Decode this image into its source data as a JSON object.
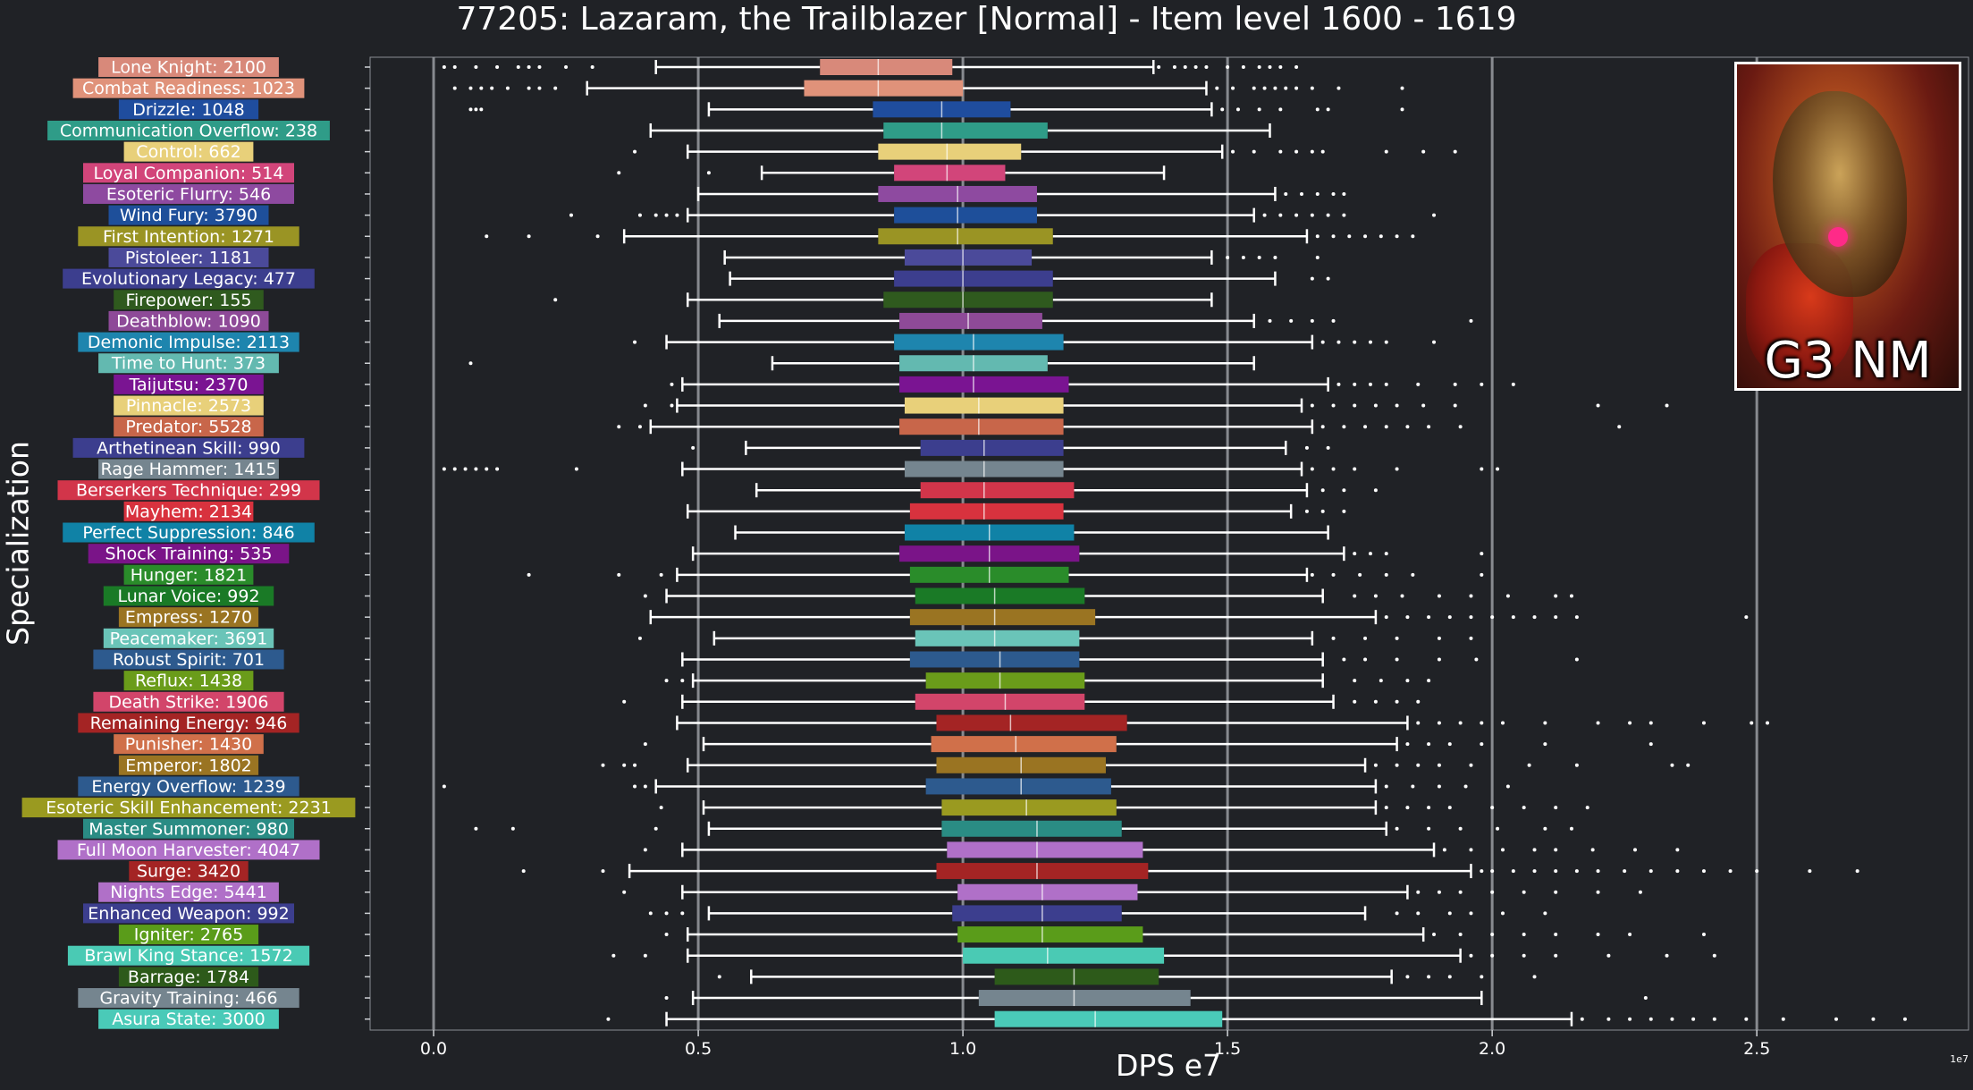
{
  "title": "77205: Lazaram, the Trailblazer [Normal] - Item level 1600 - 1619",
  "thumbnail": {
    "label": "G3 NM",
    "icon": "boss-portrait"
  },
  "chart_data": {
    "type": "box",
    "title": "77205: Lazaram, the Trailblazer [Normal] - Item level 1600 - 1619",
    "xlabel": "DPS e7",
    "ylabel": "Specialization",
    "xlim": [
      -0.12,
      2.9
    ],
    "xticks": [
      0.0,
      0.5,
      1.0,
      1.5,
      2.0,
      2.5
    ],
    "xtick_labels": [
      "0.0",
      "0.5",
      "1.0",
      "1.5",
      "2.0",
      "2.5"
    ],
    "offset_label": "1e7",
    "grid_x": [
      0,
      0.5,
      1.0,
      1.5,
      2.0,
      2.5
    ],
    "series": [
      {
        "label": "Lone Knight: 2100",
        "color": "#d8897a",
        "wl": 0.42,
        "q1": 0.73,
        "med": 0.84,
        "q3": 0.98,
        "wh": 1.36,
        "out": [
          0.02,
          0.04,
          0.08,
          0.12,
          0.16,
          0.18,
          0.2,
          0.25,
          0.3,
          1.37,
          1.4,
          1.42,
          1.44,
          1.46,
          1.5,
          1.53,
          1.56,
          1.58,
          1.6,
          1.63
        ]
      },
      {
        "label": "Combat Readiness: 1023",
        "color": "#e0927a",
        "wl": 0.29,
        "q1": 0.7,
        "med": 0.84,
        "q3": 1.0,
        "wh": 1.46,
        "out": [
          0.04,
          0.07,
          0.09,
          0.11,
          0.14,
          0.18,
          0.2,
          0.23,
          1.48,
          1.51,
          1.55,
          1.57,
          1.59,
          1.61,
          1.63,
          1.66,
          1.71,
          1.83
        ]
      },
      {
        "label": "Drizzle: 1048",
        "color": "#1f4d9e",
        "wl": 0.52,
        "q1": 0.83,
        "med": 0.96,
        "q3": 1.09,
        "wh": 1.47,
        "out": [
          0.07,
          0.08,
          0.09,
          1.49,
          1.52,
          1.56,
          1.6,
          1.67,
          1.69,
          1.83
        ]
      },
      {
        "label": "Communication Overflow: 238",
        "color": "#2f9c88",
        "wl": 0.41,
        "q1": 0.85,
        "med": 0.96,
        "q3": 1.16,
        "wh": 1.58,
        "out": []
      },
      {
        "label": "Control: 662",
        "color": "#e8d07a",
        "wl": 0.48,
        "q1": 0.84,
        "med": 0.97,
        "q3": 1.11,
        "wh": 1.49,
        "out": [
          0.38,
          1.51,
          1.55,
          1.6,
          1.63,
          1.66,
          1.68,
          1.8,
          1.87,
          1.93
        ]
      },
      {
        "label": "Loyal Companion: 514",
        "color": "#d2457a",
        "wl": 0.62,
        "q1": 0.87,
        "med": 0.97,
        "q3": 1.08,
        "wh": 1.38,
        "out": [
          0.35,
          0.52
        ]
      },
      {
        "label": "Esoteric Flurry: 546",
        "color": "#8e4aa0",
        "wl": 0.5,
        "q1": 0.84,
        "med": 0.99,
        "q3": 1.14,
        "wh": 1.59,
        "out": [
          1.61,
          1.64,
          1.67,
          1.7,
          1.72
        ]
      },
      {
        "label": "Wind Fury: 3790",
        "color": "#1e4f9a",
        "wl": 0.48,
        "q1": 0.87,
        "med": 0.99,
        "q3": 1.14,
        "wh": 1.55,
        "out": [
          0.26,
          0.39,
          0.42,
          0.44,
          0.46,
          1.57,
          1.6,
          1.63,
          1.66,
          1.69,
          1.72,
          1.89
        ]
      },
      {
        "label": "First Intention: 1271",
        "color": "#9a9424",
        "wl": 0.36,
        "q1": 0.84,
        "med": 0.99,
        "q3": 1.17,
        "wh": 1.65,
        "out": [
          0.1,
          0.18,
          0.31,
          1.67,
          1.7,
          1.73,
          1.76,
          1.79,
          1.82,
          1.85
        ]
      },
      {
        "label": "Pistoleer: 1181",
        "color": "#4b4a9a",
        "wl": 0.55,
        "q1": 0.89,
        "med": 1.0,
        "q3": 1.13,
        "wh": 1.47,
        "out": [
          1.5,
          1.53,
          1.56,
          1.59,
          1.67
        ]
      },
      {
        "label": "Evolutionary Legacy: 477",
        "color": "#3c3e8e",
        "wl": 0.56,
        "q1": 0.87,
        "med": 1.0,
        "q3": 1.17,
        "wh": 1.59,
        "out": [
          1.66,
          1.69
        ]
      },
      {
        "label": "Firepower: 155",
        "color": "#2f5a1e",
        "wl": 0.48,
        "q1": 0.85,
        "med": 1.0,
        "q3": 1.17,
        "wh": 1.47,
        "out": [
          0.23
        ]
      },
      {
        "label": "Deathblow: 1090",
        "color": "#8e4a98",
        "wl": 0.54,
        "q1": 0.88,
        "med": 1.01,
        "q3": 1.15,
        "wh": 1.55,
        "out": [
          1.58,
          1.62,
          1.66,
          1.7,
          1.96
        ]
      },
      {
        "label": "Demonic Impulse: 2113",
        "color": "#1e85ae",
        "wl": 0.44,
        "q1": 0.87,
        "med": 1.02,
        "q3": 1.19,
        "wh": 1.66,
        "out": [
          0.38,
          1.68,
          1.71,
          1.74,
          1.77,
          1.8,
          1.89
        ]
      },
      {
        "label": "Time to Hunt: 373",
        "color": "#63b9b0",
        "wl": 0.64,
        "q1": 0.88,
        "med": 1.02,
        "q3": 1.16,
        "wh": 1.55,
        "out": [
          0.07
        ]
      },
      {
        "label": "Taijutsu: 2370",
        "color": "#7a1492",
        "wl": 0.47,
        "q1": 0.88,
        "med": 1.02,
        "q3": 1.2,
        "wh": 1.69,
        "out": [
          0.45,
          1.71,
          1.74,
          1.77,
          1.8,
          1.86,
          1.93,
          1.98,
          2.04
        ]
      },
      {
        "label": "Pinnacle: 2573",
        "color": "#e8d07a",
        "wl": 0.46,
        "q1": 0.89,
        "med": 1.03,
        "q3": 1.19,
        "wh": 1.64,
        "out": [
          0.4,
          0.45,
          1.66,
          1.7,
          1.74,
          1.78,
          1.82,
          1.87,
          1.93,
          2.2,
          2.33
        ]
      },
      {
        "label": "Predator: 5528",
        "color": "#c8664a",
        "wl": 0.41,
        "q1": 0.88,
        "med": 1.03,
        "q3": 1.19,
        "wh": 1.66,
        "out": [
          0.35,
          0.39,
          1.68,
          1.72,
          1.76,
          1.8,
          1.84,
          1.88,
          1.94,
          2.24
        ]
      },
      {
        "label": "Arthetinean Skill: 990",
        "color": "#3c3e8e",
        "wl": 0.59,
        "q1": 0.92,
        "med": 1.04,
        "q3": 1.19,
        "wh": 1.61,
        "out": [
          0.49,
          1.65,
          1.69
        ]
      },
      {
        "label": "Rage Hammer: 1415",
        "color": "#75858f",
        "wl": 0.47,
        "q1": 0.89,
        "med": 1.04,
        "q3": 1.19,
        "wh": 1.64,
        "out": [
          0.02,
          0.04,
          0.06,
          0.08,
          0.1,
          0.12,
          0.27,
          1.66,
          1.7,
          1.74,
          1.82,
          1.98,
          2.01
        ]
      },
      {
        "label": "Berserkers Technique: 299",
        "color": "#d2354a",
        "wl": 0.61,
        "q1": 0.92,
        "med": 1.04,
        "q3": 1.21,
        "wh": 1.65,
        "out": [
          1.68,
          1.72,
          1.78
        ]
      },
      {
        "label": "Mayhem: 2134",
        "color": "#d8323e",
        "wl": 0.48,
        "q1": 0.9,
        "med": 1.04,
        "q3": 1.19,
        "wh": 1.62,
        "out": [
          1.65,
          1.68,
          1.72
        ]
      },
      {
        "label": "Perfect Suppression: 846",
        "color": "#1082a6",
        "wl": 0.57,
        "q1": 0.89,
        "med": 1.05,
        "q3": 1.21,
        "wh": 1.69,
        "out": []
      },
      {
        "label": "Shock Training: 535",
        "color": "#7a1488",
        "wl": 0.49,
        "q1": 0.88,
        "med": 1.05,
        "q3": 1.22,
        "wh": 1.72,
        "out": [
          1.74,
          1.77,
          1.8,
          1.98
        ]
      },
      {
        "label": "Hunger: 1821",
        "color": "#2a8c2a",
        "wl": 0.46,
        "q1": 0.9,
        "med": 1.05,
        "q3": 1.2,
        "wh": 1.65,
        "out": [
          0.18,
          0.35,
          0.43,
          1.66,
          1.7,
          1.75,
          1.8,
          1.85,
          1.98
        ]
      },
      {
        "label": "Lunar Voice: 992",
        "color": "#1a7a26",
        "wl": 0.44,
        "q1": 0.91,
        "med": 1.06,
        "q3": 1.23,
        "wh": 1.68,
        "out": [
          0.4,
          1.74,
          1.78,
          1.83,
          1.9,
          1.96,
          2.03,
          2.12,
          2.15
        ]
      },
      {
        "label": "Empress: 1270",
        "color": "#9a7422",
        "wl": 0.41,
        "q1": 0.9,
        "med": 1.06,
        "q3": 1.25,
        "wh": 1.78,
        "out": [
          1.8,
          1.84,
          1.88,
          1.92,
          1.96,
          2.0,
          2.04,
          2.08,
          2.12,
          2.16,
          2.48
        ]
      },
      {
        "label": "Peacemaker: 3691",
        "color": "#6ac4b8",
        "wl": 0.53,
        "q1": 0.91,
        "med": 1.06,
        "q3": 1.22,
        "wh": 1.66,
        "out": [
          0.39,
          1.7,
          1.76,
          1.82,
          1.9,
          1.96
        ]
      },
      {
        "label": "Robust Spirit: 701",
        "color": "#2d5a8e",
        "wl": 0.47,
        "q1": 0.9,
        "med": 1.07,
        "q3": 1.22,
        "wh": 1.68,
        "out": [
          1.72,
          1.76,
          1.82,
          1.9,
          1.97,
          2.16
        ]
      },
      {
        "label": "Reflux: 1438",
        "color": "#6a9c1a",
        "wl": 0.49,
        "q1": 0.93,
        "med": 1.07,
        "q3": 1.23,
        "wh": 1.68,
        "out": [
          0.44,
          0.47,
          1.74,
          1.79,
          1.84,
          1.88
        ]
      },
      {
        "label": "Death Strike: 1906",
        "color": "#d2456a",
        "wl": 0.47,
        "q1": 0.91,
        "med": 1.08,
        "q3": 1.23,
        "wh": 1.7,
        "out": [
          0.36,
          1.74,
          1.78,
          1.82,
          1.86
        ]
      },
      {
        "label": "Remaining Energy: 946",
        "color": "#a42424",
        "wl": 0.46,
        "q1": 0.95,
        "med": 1.09,
        "q3": 1.31,
        "wh": 1.84,
        "out": [
          1.86,
          1.9,
          1.94,
          1.98,
          2.02,
          2.1,
          2.2,
          2.26,
          2.3,
          2.4,
          2.49,
          2.52
        ]
      },
      {
        "label": "Punisher: 1430",
        "color": "#d0704a",
        "wl": 0.51,
        "q1": 0.94,
        "med": 1.1,
        "q3": 1.29,
        "wh": 1.82,
        "out": [
          0.4,
          1.84,
          1.88,
          1.92,
          1.98,
          2.1,
          2.3
        ]
      },
      {
        "label": "Emperor: 1802",
        "color": "#9a7422",
        "wl": 0.48,
        "q1": 0.95,
        "med": 1.11,
        "q3": 1.27,
        "wh": 1.76,
        "out": [
          0.32,
          0.36,
          0.38,
          1.78,
          1.82,
          1.86,
          1.9,
          1.96,
          2.07,
          2.16,
          2.34,
          2.37
        ]
      },
      {
        "label": "Energy Overflow: 1239",
        "color": "#2d5a8e",
        "wl": 0.42,
        "q1": 0.93,
        "med": 1.11,
        "q3": 1.28,
        "wh": 1.78,
        "out": [
          0.02,
          0.38,
          0.4,
          1.8,
          1.85,
          1.9,
          1.95,
          2.03
        ]
      },
      {
        "label": "Esoteric Skill Enhancement: 2231",
        "color": "#9a9a20",
        "wl": 0.51,
        "q1": 0.96,
        "med": 1.12,
        "q3": 1.29,
        "wh": 1.78,
        "out": [
          0.43,
          1.8,
          1.84,
          1.88,
          1.92,
          2.0,
          2.06,
          2.12,
          2.18
        ]
      },
      {
        "label": "Master Summoner: 980",
        "color": "#2a8c84",
        "wl": 0.52,
        "q1": 0.96,
        "med": 1.14,
        "q3": 1.3,
        "wh": 1.8,
        "out": [
          0.08,
          0.15,
          0.42,
          1.82,
          1.88,
          1.94,
          2.01,
          2.1,
          2.15
        ]
      },
      {
        "label": "Full Moon Harvester: 4047",
        "color": "#b070c8",
        "wl": 0.47,
        "q1": 0.97,
        "med": 1.14,
        "q3": 1.34,
        "wh": 1.89,
        "out": [
          0.4,
          1.91,
          1.96,
          2.02,
          2.08,
          2.12,
          2.19,
          2.27,
          2.35
        ]
      },
      {
        "label": "Surge: 3420",
        "color": "#a42424",
        "wl": 0.37,
        "q1": 0.95,
        "med": 1.14,
        "q3": 1.35,
        "wh": 1.96,
        "out": [
          0.17,
          0.32,
          1.98,
          2.0,
          2.04,
          2.08,
          2.12,
          2.16,
          2.2,
          2.25,
          2.3,
          2.35,
          2.4,
          2.45,
          2.5,
          2.6,
          2.69
        ]
      },
      {
        "label": "Nights Edge: 5441",
        "color": "#b070c8",
        "wl": 0.47,
        "q1": 0.99,
        "med": 1.15,
        "q3": 1.33,
        "wh": 1.84,
        "out": [
          0.36,
          1.86,
          1.9,
          1.94,
          2.0,
          2.06,
          2.12,
          2.2,
          2.28
        ]
      },
      {
        "label": "Enhanced Weapon: 992",
        "color": "#3c3e8e",
        "wl": 0.52,
        "q1": 0.98,
        "med": 1.15,
        "q3": 1.3,
        "wh": 1.76,
        "out": [
          0.41,
          0.44,
          0.47,
          1.82,
          1.86,
          1.92,
          1.96,
          2.02,
          2.1
        ]
      },
      {
        "label": "Igniter: 2765",
        "color": "#5a9c1a",
        "wl": 0.48,
        "q1": 0.99,
        "med": 1.15,
        "q3": 1.34,
        "wh": 1.87,
        "out": [
          0.44,
          1.89,
          1.94,
          2.0,
          2.06,
          2.12,
          2.2,
          2.26,
          2.4
        ]
      },
      {
        "label": "Brawl King Stance: 1572",
        "color": "#4acab4",
        "wl": 0.48,
        "q1": 1.0,
        "med": 1.16,
        "q3": 1.38,
        "wh": 1.94,
        "out": [
          0.34,
          0.4,
          1.96,
          2.0,
          2.06,
          2.12,
          2.22,
          2.33,
          2.42
        ]
      },
      {
        "label": "Barrage: 1784",
        "color": "#2d5a1a",
        "wl": 0.6,
        "q1": 1.06,
        "med": 1.21,
        "q3": 1.37,
        "wh": 1.81,
        "out": [
          0.54,
          1.84,
          1.88,
          1.92,
          1.98,
          2.08
        ]
      },
      {
        "label": "Gravity Training: 466",
        "color": "#75858f",
        "wl": 0.49,
        "q1": 1.03,
        "med": 1.21,
        "q3": 1.43,
        "wh": 1.98,
        "out": [
          0.44,
          2.29
        ]
      },
      {
        "label": "Asura State: 3000",
        "color": "#4acab8",
        "wl": 0.44,
        "q1": 1.06,
        "med": 1.25,
        "q3": 1.49,
        "wh": 2.15,
        "out": [
          0.33,
          2.17,
          2.22,
          2.26,
          2.3,
          2.34,
          2.38,
          2.42,
          2.48,
          2.55,
          2.65,
          2.72,
          2.78
        ]
      }
    ]
  }
}
